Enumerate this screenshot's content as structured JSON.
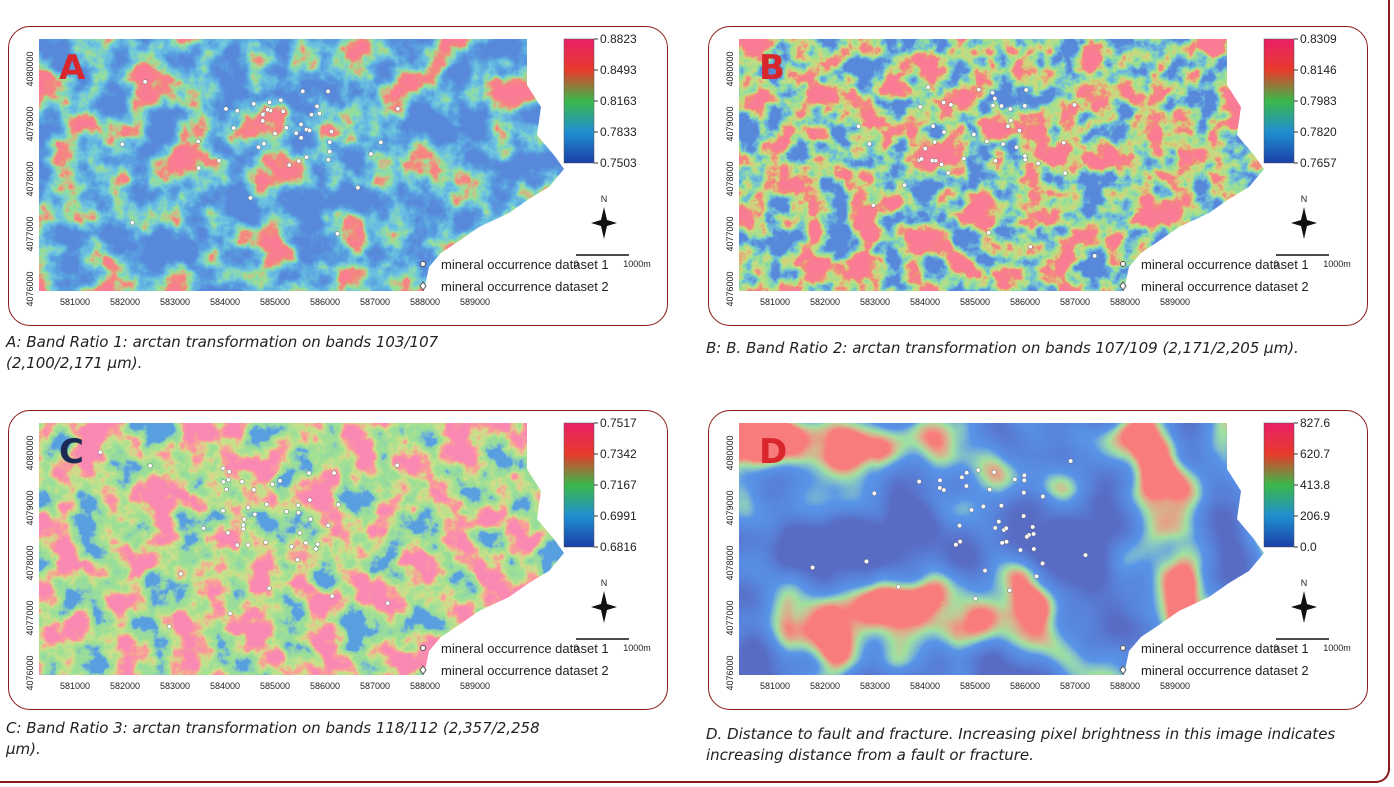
{
  "panels": [
    {
      "letter": "A",
      "colorbar": [
        "0.8823",
        "0.8493",
        "0.8163",
        "0.7833",
        "0.7503"
      ],
      "x_ticks": [
        "581000",
        "582000",
        "583000",
        "584000",
        "585000",
        "586000",
        "587000",
        "588000",
        "589000"
      ],
      "y_ticks": [
        "4080000",
        "4079000",
        "4078000",
        "4077000",
        "4076000"
      ],
      "north": "N",
      "scale": [
        "0",
        "1000m"
      ],
      "legend": [
        "mineral occurrence dataset 1",
        "mineral occurrence dataset 2"
      ],
      "caption": "A: Band Ratio 1: arctan transformation on bands 103/107 (2,100/2,171 μm)."
    },
    {
      "letter": "B",
      "colorbar": [
        "0.8309",
        "0.8146",
        "0.7983",
        "0.7820",
        "0.7657"
      ],
      "x_ticks": [
        "581000",
        "582000",
        "583000",
        "584000",
        "585000",
        "586000",
        "587000",
        "588000",
        "589000"
      ],
      "y_ticks": [
        "4080000",
        "4079000",
        "4078000",
        "4077000",
        "4076000"
      ],
      "north": "N",
      "scale": [
        "0",
        "1000m"
      ],
      "legend": [
        "mineral occurrence dataset 1",
        "mineral occurrence dataset 2"
      ],
      "caption": "B: B. Band Ratio 2: arctan transformation on bands 107/109 (2,171/2,205 μm)."
    },
    {
      "letter": "C",
      "colorbar": [
        "0.7517",
        "0.7342",
        "0.7167",
        "0.6991",
        "0.6816"
      ],
      "x_ticks": [
        "581000",
        "582000",
        "583000",
        "584000",
        "585000",
        "586000",
        "587000",
        "588000",
        "589000"
      ],
      "y_ticks": [
        "4080000",
        "4079000",
        "4078000",
        "4077000",
        "4076000"
      ],
      "north": "N",
      "scale": [
        "0",
        "1000m"
      ],
      "legend": [
        "mineral occurrence dataset 1",
        "mineral occurrence dataset 2"
      ],
      "caption": "C: Band Ratio 3: arctan transformation on bands 118/112 (2,357/2,258 μm)."
    },
    {
      "letter": "D",
      "colorbar": [
        "827.6",
        "620.7",
        "413.8",
        "206.9",
        "0.0"
      ],
      "x_ticks": [
        "581000",
        "582000",
        "583000",
        "584000",
        "585000",
        "586000",
        "587000",
        "588000",
        "589000"
      ],
      "y_ticks": [
        "4080000",
        "4079000",
        "4078000",
        "4077000",
        "4076000"
      ],
      "north": "N",
      "scale": [
        "0",
        "1000m"
      ],
      "legend": [
        "mineral occurrence dataset 1",
        "mineral occurrence dataset 2"
      ],
      "caption": "D. Distance to fault and fracture. Increasing pixel brightness in this image indicates increasing distance from a fault or fracture."
    }
  ]
}
